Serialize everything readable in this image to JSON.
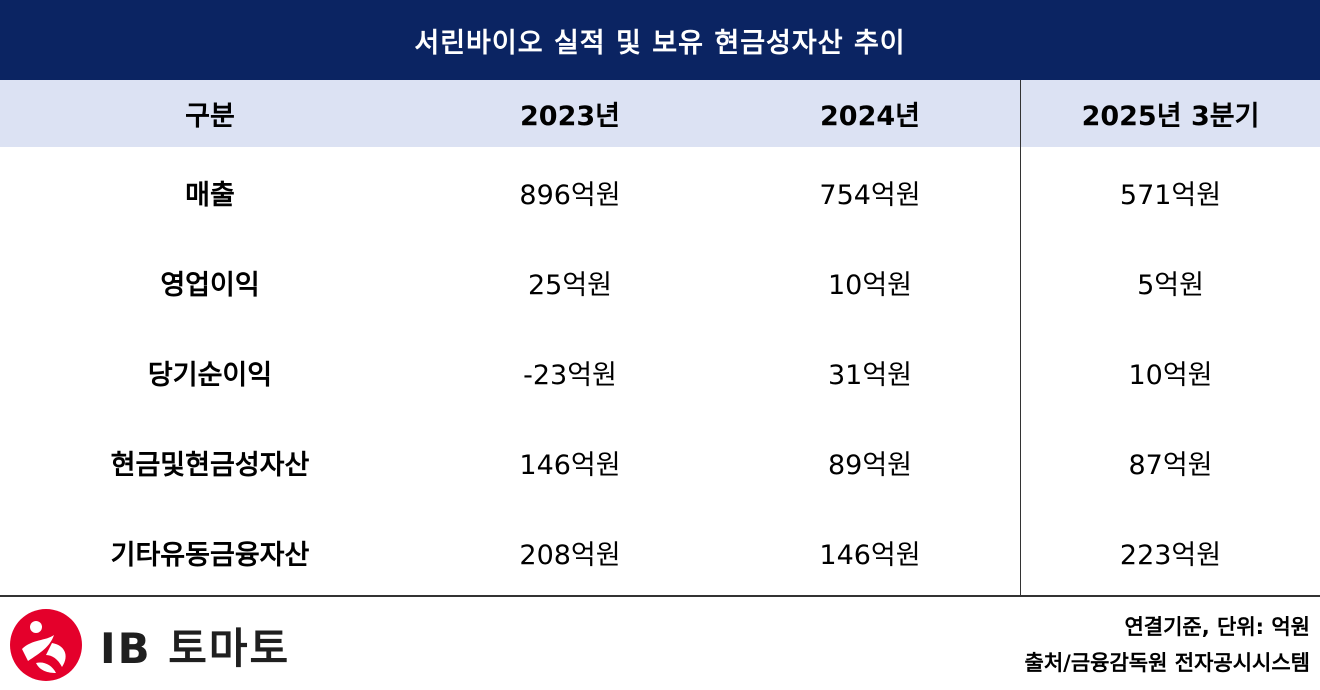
{
  "title": "서린바이오 실적 및 보유 현금성자산 추이",
  "header": [
    "구분",
    "2023년",
    "2024년",
    "2025년 3분기"
  ],
  "rows": [
    {
      "label": "매출",
      "values": [
        "896억원",
        "754억원",
        "571억원"
      ]
    },
    {
      "label": "영업이익",
      "values": [
        "25억원",
        "10억원",
        "5억원"
      ]
    },
    {
      "label": "당기순이익",
      "values": [
        "-23억원",
        "31억원",
        "10억원"
      ]
    },
    {
      "label": "현금및현금성자산",
      "values": [
        "146억원",
        "89억원",
        "87억원"
      ]
    },
    {
      "label": "기타유동금융자산",
      "values": [
        "208억원",
        "146억원",
        "223억원"
      ]
    }
  ],
  "footer": {
    "logo_text": "IB 토마토",
    "note_basis": "연결기준, 단위: 억원",
    "note_source": "출처/금융감독원 전자공시시스템"
  },
  "colors": {
    "title_bg": "#0b2462",
    "header_bg": "#dce2f3",
    "logo_red": "#e4002b"
  }
}
